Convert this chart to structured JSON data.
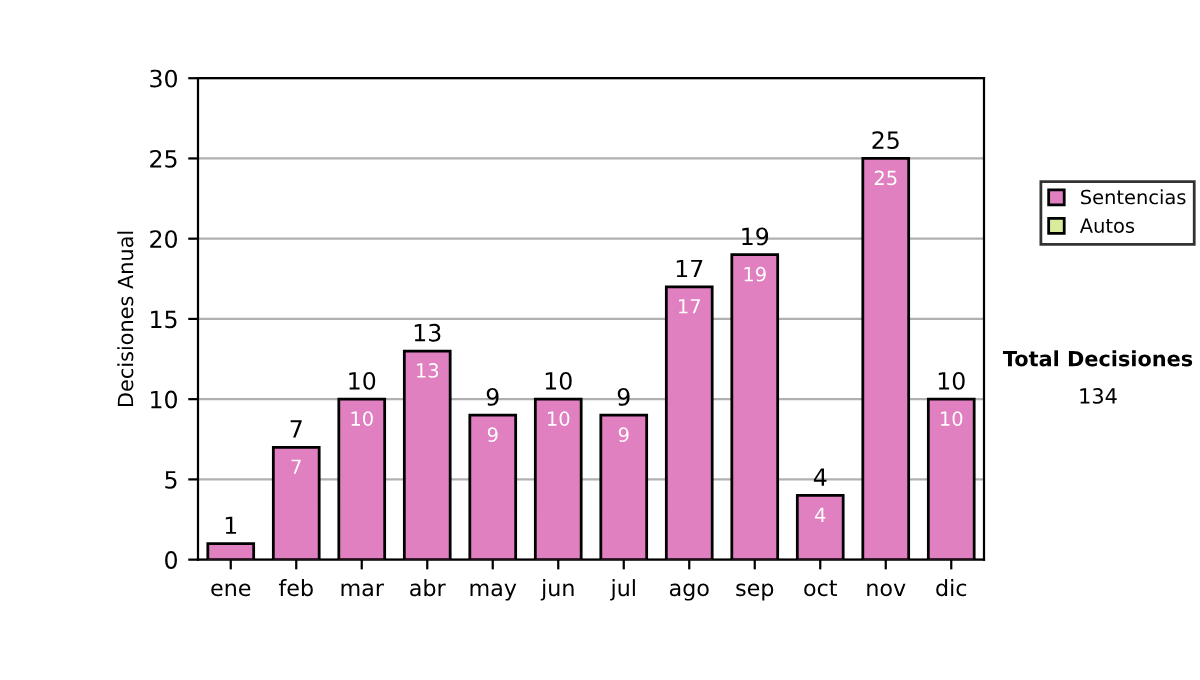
{
  "chart_data": {
    "type": "bar",
    "stacked": true,
    "ylabel": "Decisiones Anual",
    "categories": [
      "ene",
      "feb",
      "mar",
      "abr",
      "may",
      "jun",
      "jul",
      "ago",
      "sep",
      "oct",
      "nov",
      "dic"
    ],
    "series": [
      {
        "name": "Sentencias",
        "color": "#e080c0",
        "values": [
          1,
          7,
          10,
          13,
          9,
          10,
          9,
          17,
          19,
          4,
          25,
          10
        ],
        "value_labels": [
          null,
          "7",
          "10",
          "13",
          "9",
          "10",
          "9",
          "17",
          "19",
          "4",
          "25",
          "10"
        ]
      },
      {
        "name": "Autos",
        "color": "#d8ec9c",
        "values": [
          0,
          0,
          0,
          0,
          0,
          0,
          0,
          0,
          0,
          0,
          0,
          0
        ]
      }
    ],
    "totals": [
      "1",
      "7",
      "10",
      "13",
      "9",
      "10",
      "9",
      "17",
      "19",
      "4",
      "25",
      "10"
    ],
    "ylim": [
      0,
      30
    ],
    "yticks": [
      0,
      5,
      10,
      15,
      20,
      25,
      30
    ],
    "grid": "y",
    "legend": "right",
    "annotations": [
      "Total Decisiones",
      "134"
    ]
  }
}
